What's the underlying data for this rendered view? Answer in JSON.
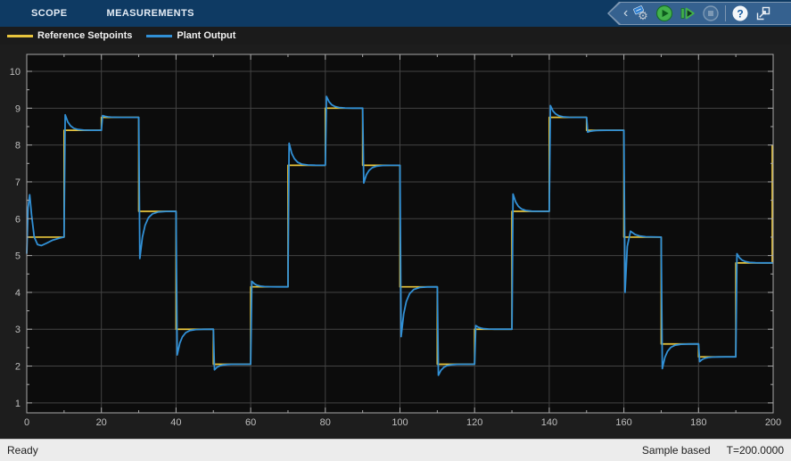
{
  "tabs": [
    {
      "label": "SCOPE"
    },
    {
      "label": "MEASUREMENTS"
    }
  ],
  "toolbar": {
    "collapse_icon": "chevron-left",
    "buttons": [
      {
        "icon": "settings-gear-tag",
        "disabled": false
      },
      {
        "icon": "run-play",
        "disabled": false
      },
      {
        "icon": "step-forward",
        "disabled": false
      },
      {
        "icon": "stop",
        "disabled": true
      },
      {
        "icon": "help-question",
        "disabled": false
      },
      {
        "icon": "popout-window",
        "disabled": false
      }
    ]
  },
  "legend": {
    "items": [
      {
        "label": "Reference Setpoints",
        "color": "#e8c53d"
      },
      {
        "label": "Plant Output",
        "color": "#3190d6"
      }
    ]
  },
  "statusbar": {
    "left": "Ready",
    "sample_mode": "Sample based",
    "time": "T=200.0000"
  },
  "chart_data": {
    "type": "line",
    "title": "",
    "xlabel": "",
    "ylabel": "",
    "xlim": [
      0,
      200
    ],
    "ylim": [
      0.73,
      10.46
    ],
    "xticks": [
      0,
      20,
      40,
      60,
      80,
      100,
      120,
      140,
      160,
      180,
      200
    ],
    "yticks": [
      1,
      2,
      3,
      4,
      5,
      6,
      7,
      8,
      9,
      10
    ],
    "x_minor_step": 10,
    "y_minor_step": 0.5,
    "grid": true,
    "legend_position": "top-outside",
    "colors": {
      "axes_bg": "#0c0c0c",
      "figure_bg": "#1d1d1d",
      "grid": "#434343",
      "border": "#a8a8a8",
      "tick": "#a8a8a8",
      "tick_label": "#bfbfbf"
    },
    "step_period": 10,
    "series": [
      {
        "name": "Reference Setpoints",
        "color": "#e8c53d",
        "style": "staircase",
        "levels": [
          5.5,
          8.4,
          8.75,
          6.2,
          3.0,
          2.05,
          4.15,
          7.45,
          9.0,
          7.45,
          4.15,
          2.05,
          3.0,
          6.2,
          8.75,
          8.4,
          5.5,
          2.6,
          2.25,
          4.8
        ],
        "final_value": 8.0
      },
      {
        "name": "Plant Output",
        "color": "#3190d6",
        "style": "tracking-response",
        "initial_points": [
          [
            0,
            5.05
          ],
          [
            0.35,
            6.3
          ],
          [
            0.8,
            6.65
          ],
          [
            1.3,
            6.1
          ],
          [
            2.0,
            5.5
          ],
          [
            2.9,
            5.3
          ],
          [
            3.9,
            5.27
          ],
          [
            5.2,
            5.33
          ],
          [
            7.0,
            5.42
          ],
          [
            9.0,
            5.48
          ],
          [
            10,
            5.5
          ]
        ],
        "transient_peaks": [
          8.82,
          8.8,
          4.92,
          2.3,
          1.9,
          4.3,
          8.05,
          9.32,
          6.97,
          2.8,
          1.75,
          3.1,
          6.67,
          9.07,
          8.35,
          4.0,
          1.93,
          2.12,
          5.05
        ],
        "bounce": {
          "t": 160,
          "value": 5.66
        }
      }
    ]
  }
}
